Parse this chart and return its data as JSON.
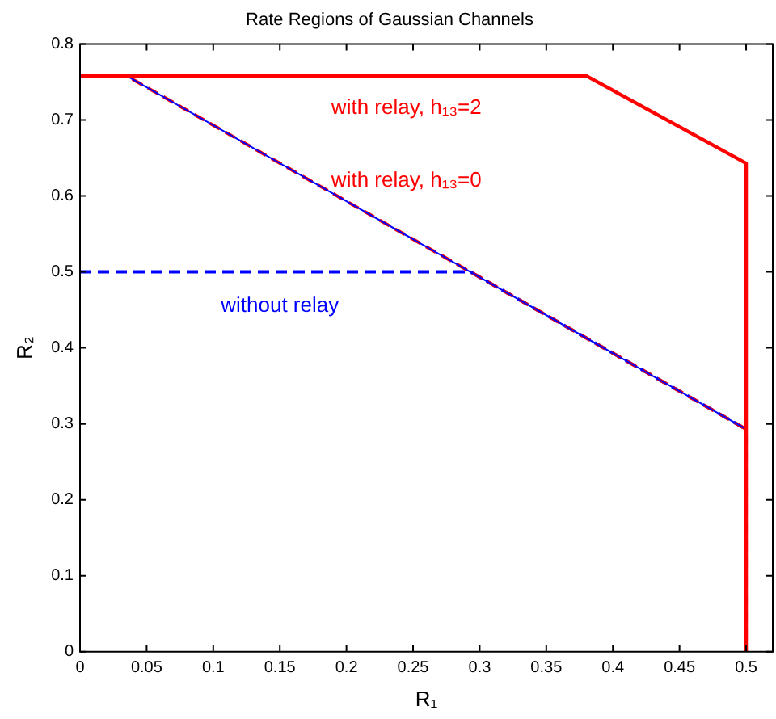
{
  "chart_data": {
    "type": "line",
    "title": "Rate Regions of Gaussian Channels",
    "xlabel": "R₁",
    "ylabel": "R₂",
    "xlim": [
      0,
      0.52
    ],
    "xticks": [
      0,
      0.05,
      0.1,
      0.15,
      0.2,
      0.25,
      0.3,
      0.35,
      0.4,
      0.45,
      0.5
    ],
    "ylim": [
      0,
      0.8
    ],
    "yticks": [
      0,
      0.1,
      0.2,
      0.3,
      0.4,
      0.5,
      0.6,
      0.7,
      0.8
    ],
    "grid": false,
    "legend": false,
    "marker": "none",
    "series": [
      {
        "name": "with relay, h₁₃=2",
        "color": "#ff0000",
        "line_style": "solid",
        "x": [
          0,
          0.38,
          0.5,
          0.5
        ],
        "values": [
          0.758,
          0.758,
          0.643,
          0
        ]
      },
      {
        "color": "#0000ff",
        "line_style": "solid",
        "x": [
          0.035,
          0.5
        ],
        "values": [
          0.758,
          0.293
        ]
      },
      {
        "name": "with relay, h₁₃=0",
        "color": "#ff0000",
        "line_style": "dashed",
        "x": [
          0,
          0.035,
          0.5,
          0.5
        ],
        "values": [
          0.758,
          0.758,
          0.293,
          0
        ]
      },
      {
        "name": "without relay",
        "color": "#0000ff",
        "line_style": "dashed",
        "x": [
          0,
          0.293,
          0.5,
          0.5
        ],
        "values": [
          0.5,
          0.5,
          0.293,
          0
        ]
      }
    ]
  }
}
